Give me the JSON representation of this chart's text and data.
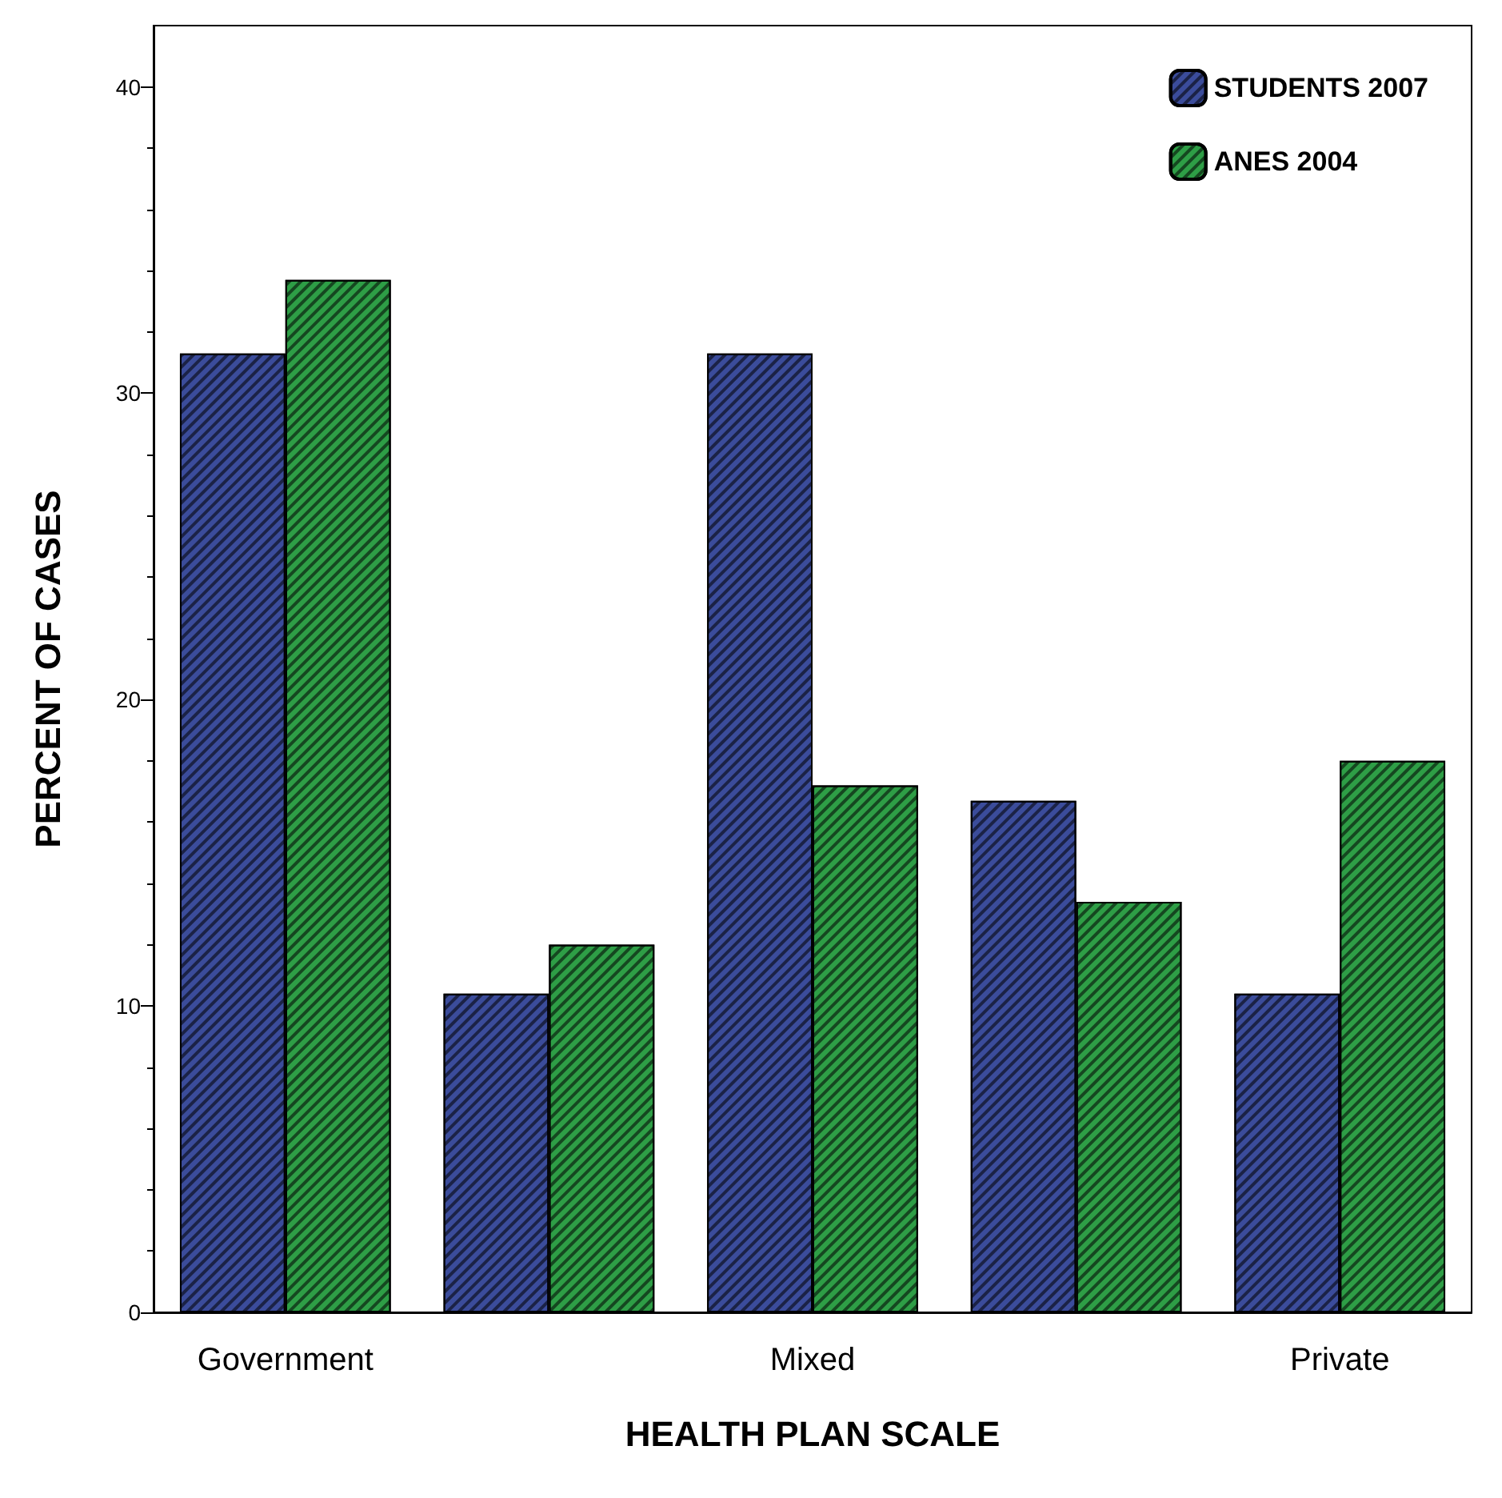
{
  "chart_data": {
    "type": "bar",
    "xlabel": "HEALTH PLAN SCALE",
    "ylabel": "PERCENT OF CASES",
    "categories": [
      "Government",
      null,
      "Mixed",
      null,
      "Private"
    ],
    "series": [
      {
        "name": "STUDENTS 2007",
        "color": "#3b4c9b",
        "values": [
          31.3,
          10.4,
          31.3,
          16.7,
          10.4
        ]
      },
      {
        "name": "ANES 2004",
        "color": "#2e9e46",
        "values": [
          33.7,
          12.0,
          17.2,
          13.4,
          18.0
        ]
      }
    ],
    "ylim": [
      0,
      42
    ],
    "yticks": [
      0,
      10,
      20,
      30,
      40
    ],
    "grid": false,
    "legend": "top right"
  }
}
